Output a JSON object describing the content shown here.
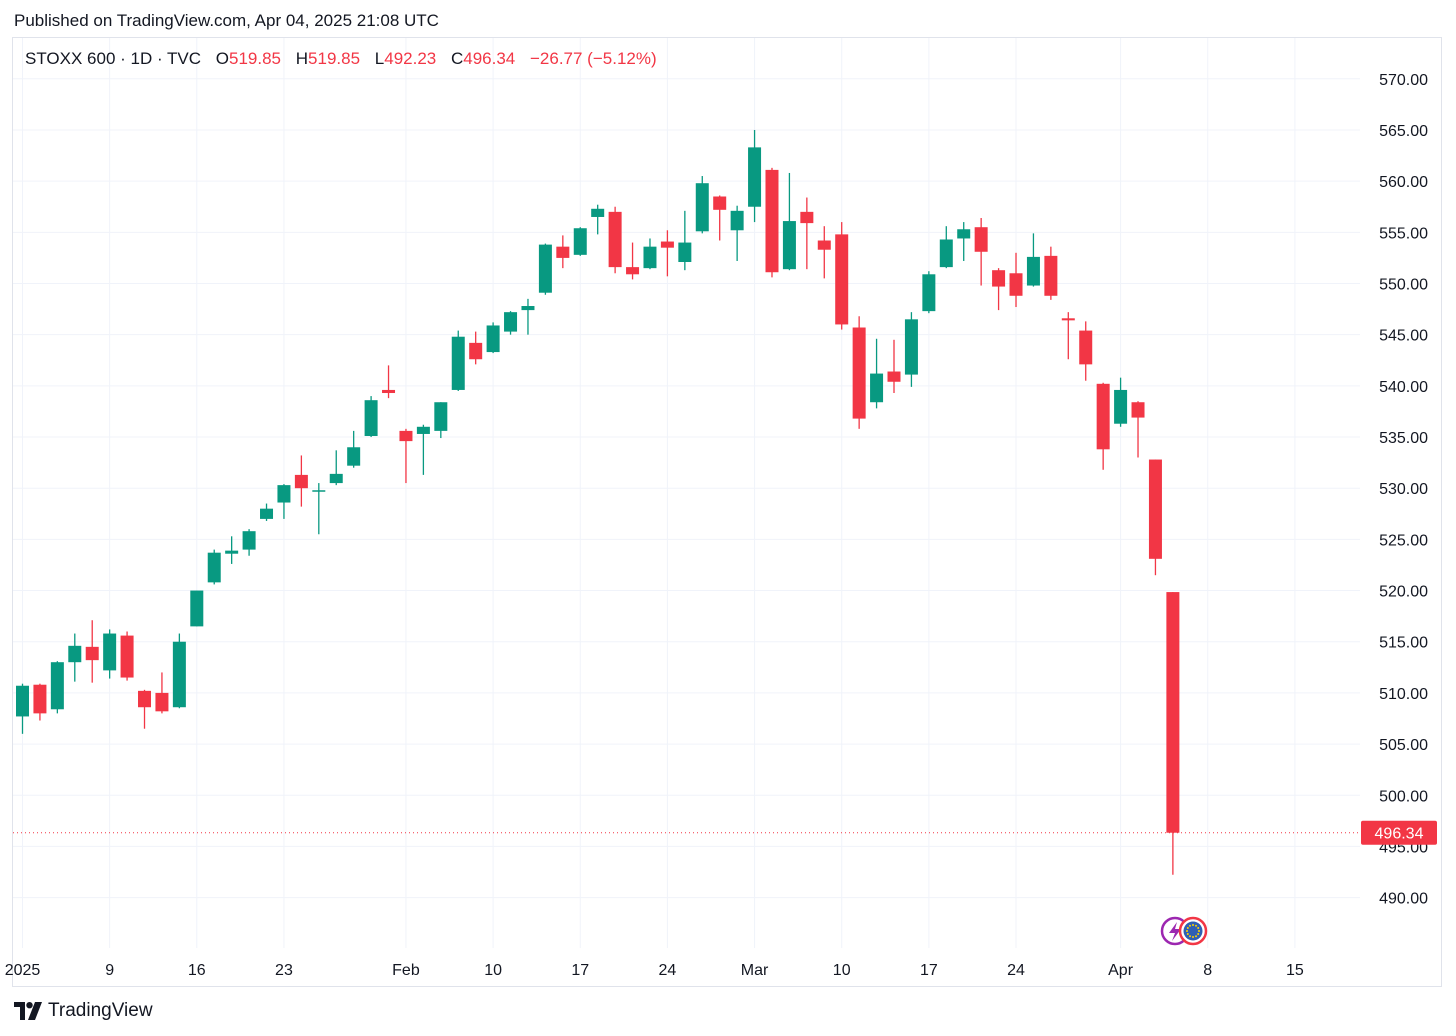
{
  "published": "Published on TradingView.com, Apr 04, 2025 21:08 UTC",
  "brand": {
    "name": "TradingView",
    "logo_icon": "tradingview-logo-icon"
  },
  "legend": {
    "symbol": "STOXX 600 · 1D · TVC",
    "open_label": "O",
    "open": "519.85",
    "high_label": "H",
    "high": "519.85",
    "low_label": "L",
    "low": "492.23",
    "close_label": "C",
    "close": "496.34",
    "change": "−26.77 (−5.12%)"
  },
  "colors": {
    "up": "#089981",
    "down": "#f23645",
    "grid": "#f0f3fa",
    "axis_text": "#131722"
  },
  "events": [
    {
      "icon": "lightning-event-icon",
      "color": "#9c27b0"
    },
    {
      "icon": "eu-flag-event-icon",
      "color": "#f23645"
    }
  ],
  "chart_data": {
    "type": "candlestick",
    "y_axis": {
      "range": [
        487,
        572
      ],
      "ticks": [
        "570.00",
        "565.00",
        "560.00",
        "555.00",
        "550.00",
        "545.00",
        "540.00",
        "535.00",
        "530.00",
        "525.00",
        "520.00",
        "515.00",
        "510.00",
        "505.00",
        "500.00",
        "495.00",
        "490.00"
      ],
      "position": "right"
    },
    "last_price": {
      "value": 496.34,
      "label": "496.34",
      "color": "#f23645"
    },
    "x_axis": {
      "labels": [
        {
          "text": "2025",
          "day": 0
        },
        {
          "text": "9",
          "day": 5
        },
        {
          "text": "16",
          "day": 10
        },
        {
          "text": "23",
          "day": 15
        },
        {
          "text": "Feb",
          "day": 22
        },
        {
          "text": "10",
          "day": 27
        },
        {
          "text": "17",
          "day": 32
        },
        {
          "text": "24",
          "day": 37
        },
        {
          "text": "Mar",
          "day": 42
        },
        {
          "text": "10",
          "day": 47
        },
        {
          "text": "17",
          "day": 52
        },
        {
          "text": "24",
          "day": 57
        },
        {
          "text": "Apr",
          "day": 63
        },
        {
          "text": "8",
          "day": 68
        },
        {
          "text": "15",
          "day": 73
        }
      ]
    },
    "candles": [
      {
        "o": 507.7,
        "h": 510.9,
        "l": 506.0,
        "c": 510.7
      },
      {
        "o": 510.8,
        "h": 510.9,
        "l": 507.3,
        "c": 508.0
      },
      {
        "o": 508.4,
        "h": 513.1,
        "l": 508.0,
        "c": 513.0
      },
      {
        "o": 513.0,
        "h": 515.8,
        "l": 511.1,
        "c": 514.6
      },
      {
        "o": 514.5,
        "h": 517.1,
        "l": 511.0,
        "c": 513.2
      },
      {
        "o": 512.2,
        "h": 516.2,
        "l": 511.4,
        "c": 515.8
      },
      {
        "o": 515.6,
        "h": 516.0,
        "l": 511.2,
        "c": 511.5
      },
      {
        "o": 510.2,
        "h": 510.3,
        "l": 506.5,
        "c": 508.6
      },
      {
        "o": 510.0,
        "h": 512.0,
        "l": 508.0,
        "c": 508.2
      },
      {
        "o": 508.6,
        "h": 515.8,
        "l": 508.5,
        "c": 515.0
      },
      {
        "o": 516.5,
        "h": 520.0,
        "l": 516.5,
        "c": 520.0
      },
      {
        "o": 520.8,
        "h": 524.0,
        "l": 520.6,
        "c": 523.7
      },
      {
        "o": 523.6,
        "h": 525.3,
        "l": 522.6,
        "c": 523.9
      },
      {
        "o": 524.0,
        "h": 526.0,
        "l": 523.4,
        "c": 525.8
      },
      {
        "o": 527.0,
        "h": 528.5,
        "l": 526.8,
        "c": 528.0
      },
      {
        "o": 528.6,
        "h": 530.4,
        "l": 527.0,
        "c": 530.3
      },
      {
        "o": 531.3,
        "h": 533.2,
        "l": 528.2,
        "c": 530.0
      },
      {
        "o": 529.8,
        "h": 530.5,
        "l": 525.5,
        "c": 529.8
      },
      {
        "o": 530.5,
        "h": 533.7,
        "l": 530.3,
        "c": 531.4
      },
      {
        "o": 532.2,
        "h": 535.6,
        "l": 532.0,
        "c": 534.0
      },
      {
        "o": 535.1,
        "h": 539.0,
        "l": 535.0,
        "c": 538.6
      },
      {
        "o": 539.6,
        "h": 542.0,
        "l": 538.8,
        "c": 539.3
      },
      {
        "o": 535.6,
        "h": 535.8,
        "l": 530.5,
        "c": 534.6
      },
      {
        "o": 535.3,
        "h": 536.2,
        "l": 531.3,
        "c": 536.0
      },
      {
        "o": 535.6,
        "h": 538.4,
        "l": 534.9,
        "c": 538.4
      },
      {
        "o": 539.6,
        "h": 545.4,
        "l": 539.5,
        "c": 544.8
      },
      {
        "o": 544.2,
        "h": 545.3,
        "l": 542.1,
        "c": 542.6
      },
      {
        "o": 543.3,
        "h": 546.2,
        "l": 543.2,
        "c": 545.9
      },
      {
        "o": 545.3,
        "h": 547.3,
        "l": 545.0,
        "c": 547.2
      },
      {
        "o": 547.4,
        "h": 548.5,
        "l": 545.0,
        "c": 547.8
      },
      {
        "o": 549.1,
        "h": 553.9,
        "l": 548.9,
        "c": 553.8
      },
      {
        "o": 553.6,
        "h": 554.7,
        "l": 551.5,
        "c": 552.5
      },
      {
        "o": 552.8,
        "h": 555.5,
        "l": 552.7,
        "c": 555.4
      },
      {
        "o": 556.5,
        "h": 557.7,
        "l": 554.8,
        "c": 557.3
      },
      {
        "o": 557.0,
        "h": 557.5,
        "l": 551.0,
        "c": 551.6
      },
      {
        "o": 551.6,
        "h": 554.0,
        "l": 550.4,
        "c": 550.9
      },
      {
        "o": 551.5,
        "h": 554.4,
        "l": 551.4,
        "c": 553.6
      },
      {
        "o": 554.1,
        "h": 555.2,
        "l": 550.7,
        "c": 553.5
      },
      {
        "o": 552.1,
        "h": 557.1,
        "l": 551.3,
        "c": 554.0
      },
      {
        "o": 555.1,
        "h": 560.5,
        "l": 554.9,
        "c": 559.8
      },
      {
        "o": 558.5,
        "h": 558.6,
        "l": 554.2,
        "c": 557.2
      },
      {
        "o": 555.2,
        "h": 557.6,
        "l": 552.2,
        "c": 557.1
      },
      {
        "o": 557.5,
        "h": 565.0,
        "l": 556.0,
        "c": 563.3
      },
      {
        "o": 561.1,
        "h": 561.3,
        "l": 550.6,
        "c": 551.1
      },
      {
        "o": 551.4,
        "h": 560.8,
        "l": 551.3,
        "c": 556.1
      },
      {
        "o": 557.0,
        "h": 558.4,
        "l": 551.4,
        "c": 555.9
      },
      {
        "o": 554.2,
        "h": 555.6,
        "l": 550.5,
        "c": 553.3
      },
      {
        "o": 554.8,
        "h": 556.0,
        "l": 545.5,
        "c": 546.0
      },
      {
        "o": 545.7,
        "h": 546.8,
        "l": 535.8,
        "c": 536.8
      },
      {
        "o": 538.4,
        "h": 544.6,
        "l": 537.8,
        "c": 541.2
      },
      {
        "o": 541.4,
        "h": 544.5,
        "l": 539.3,
        "c": 540.4
      },
      {
        "o": 541.1,
        "h": 547.2,
        "l": 539.9,
        "c": 546.5
      },
      {
        "o": 547.3,
        "h": 551.2,
        "l": 547.1,
        "c": 550.9
      },
      {
        "o": 551.6,
        "h": 555.6,
        "l": 551.5,
        "c": 554.3
      },
      {
        "o": 554.4,
        "h": 556.0,
        "l": 552.2,
        "c": 555.3
      },
      {
        "o": 555.5,
        "h": 556.4,
        "l": 549.8,
        "c": 553.1
      },
      {
        "o": 551.3,
        "h": 551.5,
        "l": 547.4,
        "c": 549.7
      },
      {
        "o": 551.0,
        "h": 553.0,
        "l": 547.7,
        "c": 548.8
      },
      {
        "o": 549.8,
        "h": 554.9,
        "l": 549.7,
        "c": 552.6
      },
      {
        "o": 552.7,
        "h": 553.6,
        "l": 548.4,
        "c": 548.8
      },
      {
        "o": 546.6,
        "h": 547.2,
        "l": 542.6,
        "c": 546.4
      },
      {
        "o": 545.4,
        "h": 546.3,
        "l": 540.5,
        "c": 542.1
      },
      {
        "o": 540.2,
        "h": 540.3,
        "l": 531.8,
        "c": 533.8
      },
      {
        "o": 536.3,
        "h": 540.8,
        "l": 536.0,
        "c": 539.6
      },
      {
        "o": 538.4,
        "h": 538.5,
        "l": 533.0,
        "c": 536.9
      },
      {
        "o": 532.8,
        "h": 532.8,
        "l": 521.5,
        "c": 523.1
      },
      {
        "o": 519.85,
        "h": 519.85,
        "l": 492.23,
        "c": 496.34
      }
    ]
  }
}
